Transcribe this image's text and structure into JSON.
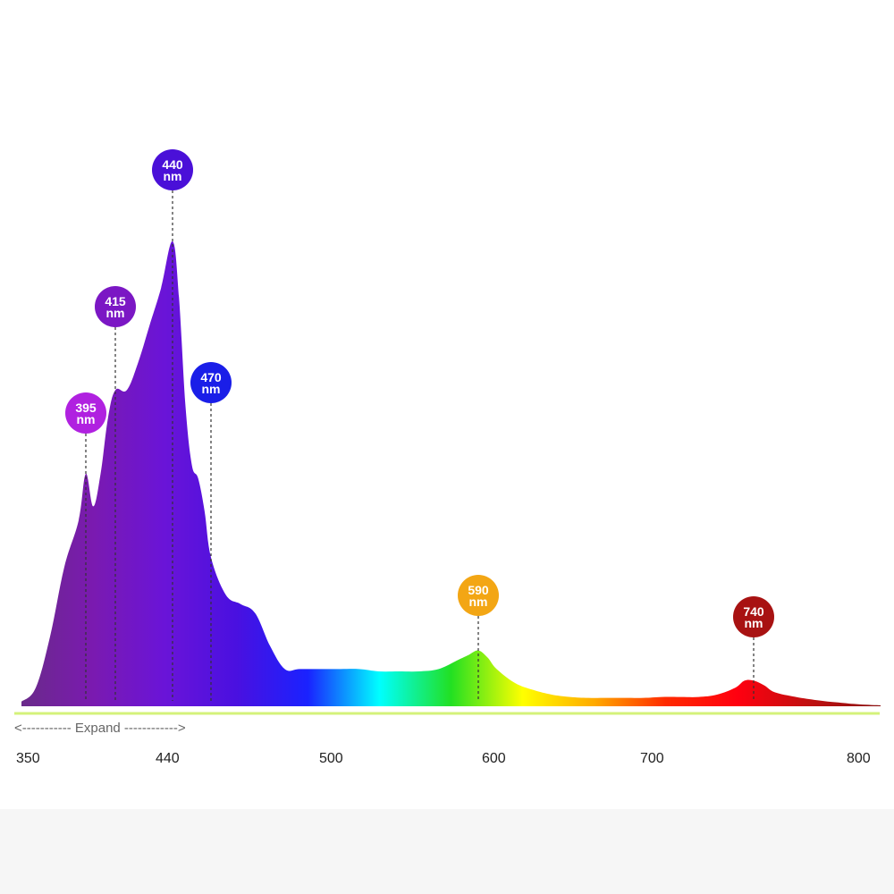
{
  "chart_data": {
    "type": "area",
    "title": "",
    "xlabel": "",
    "ylabel": "",
    "x_ticks": [
      "350",
      "440",
      "500",
      "600",
      "700",
      "800"
    ],
    "expand_label": "<----------- Expand ------------>",
    "series": [
      {
        "x": [
          350,
          360,
          370,
          380,
          390,
          395,
          400,
          405,
          410,
          415,
          420,
          425,
          430,
          435,
          440,
          445,
          450,
          455,
          460,
          465,
          470,
          475,
          480,
          485,
          490,
          495,
          500,
          510,
          520,
          530,
          540,
          550,
          560,
          570,
          580,
          585,
          590,
          595,
          600,
          610,
          620,
          630,
          640,
          650,
          660,
          670,
          680,
          690,
          700,
          710,
          720,
          730,
          735,
          740,
          745,
          750,
          760,
          770,
          780,
          790,
          800
        ],
        "values": [
          0.01,
          0.04,
          0.15,
          0.3,
          0.4,
          0.5,
          0.43,
          0.5,
          0.62,
          0.68,
          0.68,
          0.74,
          0.82,
          0.9,
          1.0,
          0.88,
          0.65,
          0.52,
          0.49,
          0.42,
          0.32,
          0.24,
          0.22,
          0.2,
          0.13,
          0.08,
          0.08,
          0.08,
          0.08,
          0.08,
          0.075,
          0.075,
          0.075,
          0.08,
          0.1,
          0.11,
          0.12,
          0.105,
          0.08,
          0.05,
          0.035,
          0.025,
          0.02,
          0.018,
          0.018,
          0.018,
          0.018,
          0.02,
          0.02,
          0.02,
          0.025,
          0.04,
          0.055,
          0.055,
          0.045,
          0.03,
          0.02,
          0.013,
          0.008,
          0.004,
          0.002
        ]
      }
    ],
    "xlim": [
      350,
      800
    ],
    "ylim": [
      0,
      1
    ],
    "peaks": [
      {
        "wavelength": 395,
        "label": "395",
        "unit": "nm",
        "color": "#b021e0"
      },
      {
        "wavelength": 415,
        "label": "415",
        "unit": "nm",
        "color": "#7b17c4"
      },
      {
        "wavelength": 440,
        "label": "440",
        "unit": "nm",
        "color": "#4a10d8"
      },
      {
        "wavelength": 470,
        "label": "470",
        "unit": "nm",
        "color": "#1a1ee8"
      },
      {
        "wavelength": 590,
        "label": "590",
        "unit": "nm",
        "color": "#f3a614"
      },
      {
        "wavelength": 740,
        "label": "740",
        "unit": "nm",
        "color": "#a81212"
      }
    ],
    "colors": {
      "baseline": "#d4f27a",
      "guide": "#333333",
      "gradient": [
        "#6a2a8a",
        "#7a1ab0",
        "#6a14d8",
        "#4a10e0",
        "#1a22ff",
        "#00ffff",
        "#22e022",
        "#ffff00",
        "#ffaa00",
        "#ff2a00",
        "#ff0010",
        "#c01010",
        "#8a1010"
      ]
    },
    "grid": false,
    "legend": "none"
  }
}
